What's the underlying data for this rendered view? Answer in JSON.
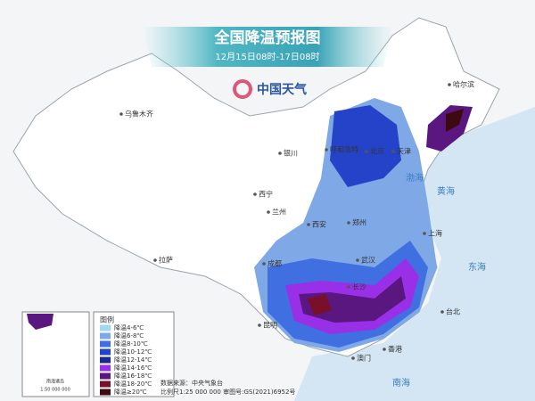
{
  "header": {
    "title": "全国降温预报图",
    "subtitle": "12月15日08时-17日08时",
    "logo": "中国天气"
  },
  "cities": [
    "哈尔滨",
    "乌鲁木齐",
    "呼和浩特",
    "北京",
    "天津",
    "银川",
    "西宁",
    "兰州",
    "西安",
    "郑州",
    "武汉",
    "上海",
    "长沙",
    "成都",
    "拉萨",
    "昆明",
    "香港",
    "澳门",
    "台北"
  ],
  "seas": [
    "渤海",
    "黄海",
    "东海",
    "南海"
  ],
  "legend": {
    "title": "图例",
    "items": [
      {
        "label": "降温4-6℃",
        "color": "#9fd8f0"
      },
      {
        "label": "降温6-8℃",
        "color": "#7fa8e6"
      },
      {
        "label": "降温8-10℃",
        "color": "#3f6fe0"
      },
      {
        "label": "降温10-12℃",
        "color": "#2443c8"
      },
      {
        "label": "降温12-14℃",
        "color": "#1b2a8a"
      },
      {
        "label": "降温14-16℃",
        "color": "#9a2fe8"
      },
      {
        "label": "降温16-18℃",
        "color": "#5a1780"
      },
      {
        "label": "降温18-20℃",
        "color": "#7a0f2a"
      },
      {
        "label": "降温≥20℃",
        "color": "#3e0a12"
      }
    ]
  },
  "inset": {
    "title": "南海诸岛",
    "scale": "1:50 000 000"
  },
  "footer": {
    "source": "数据来源：中央气象台",
    "scale": "比例尺1:25 000 000  审图号:GS(2021)6952号"
  }
}
